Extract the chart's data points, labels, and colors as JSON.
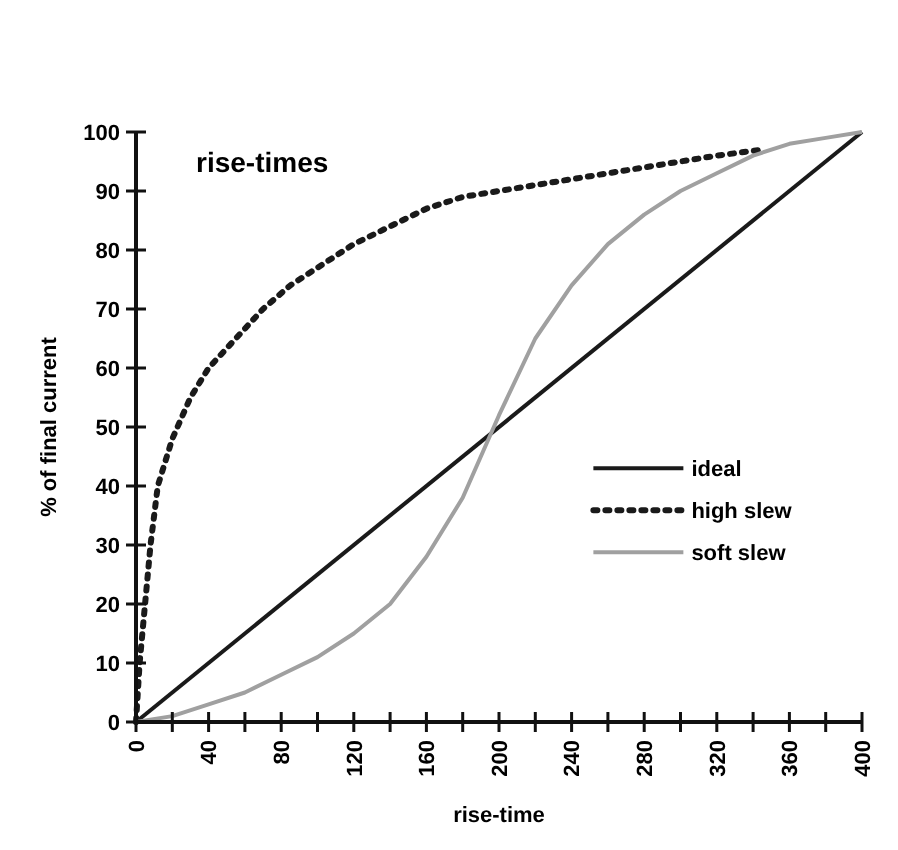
{
  "chart_data": {
    "type": "line",
    "title": "rise-times",
    "xlabel": "rise-time",
    "ylabel": "% of final current",
    "xlim": [
      0,
      400
    ],
    "xticks": [
      0,
      {
        "value": 20,
        "label": null
      },
      40,
      {
        "value": 60,
        "label": null
      },
      80,
      {
        "value": 100,
        "label": null
      },
      120,
      {
        "value": 140,
        "label": null
      },
      160,
      {
        "value": 180,
        "label": null
      },
      200,
      {
        "value": 220,
        "label": null
      },
      240,
      {
        "value": 260,
        "label": null
      },
      280,
      {
        "value": 300,
        "label": null
      },
      320,
      {
        "value": 340,
        "label": null
      },
      360,
      {
        "value": 380,
        "label": null
      },
      400
    ],
    "ylim": [
      0,
      100
    ],
    "yticks": [
      0,
      10,
      20,
      30,
      40,
      50,
      60,
      70,
      80,
      90,
      100
    ],
    "grid": false,
    "legend": "right",
    "series": [
      {
        "name": "ideal",
        "color": "#1a1a1a",
        "line_style": "solid",
        "x": [
          0,
          400
        ],
        "values": [
          0,
          100
        ]
      },
      {
        "name": "high slew",
        "color": "#1a1a1a",
        "line_style": "dotted",
        "x": [
          0,
          2,
          5,
          8,
          12,
          20,
          30,
          40,
          55,
          70,
          85,
          100,
          120,
          140,
          160,
          180,
          200,
          240,
          280,
          320,
          345
        ],
        "values": [
          0,
          10,
          20,
          30,
          40,
          48,
          55,
          60,
          65,
          70,
          74,
          77,
          81,
          84,
          87,
          89,
          90,
          92,
          94,
          96,
          97
        ]
      },
      {
        "name": "soft slew",
        "color": "#a0a0a0",
        "line_style": "solid",
        "x": [
          0,
          20,
          40,
          60,
          80,
          100,
          120,
          140,
          160,
          180,
          200,
          220,
          240,
          260,
          280,
          300,
          320,
          340,
          360,
          380,
          400
        ],
        "values": [
          0,
          1,
          3,
          5,
          8,
          11,
          15,
          20,
          28,
          38,
          52,
          65,
          74,
          81,
          86,
          90,
          93,
          96,
          98,
          99,
          100
        ]
      }
    ]
  }
}
